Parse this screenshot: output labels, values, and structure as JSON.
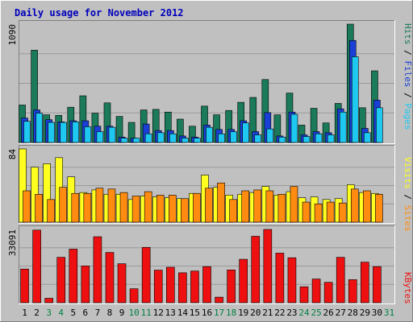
{
  "colors": {
    "background": "#c0c0c0",
    "plot_bg": "#c0c0c0",
    "gridline": "#9a9a9a",
    "title": "#0000bb",
    "hits": "#1a7a5a",
    "files": "#1a3fd6",
    "pages": "#1ec8f0",
    "visits": "#ffff20",
    "sites": "#ff8c10",
    "kbytes": "#ee1010",
    "weekday_label": "#000000",
    "weekend_label": "#008040",
    "slash": "#000000"
  },
  "chart_data": {
    "type": "bar",
    "title": "Daily usage for November 2012",
    "categories": [
      "1",
      "2",
      "3",
      "4",
      "5",
      "6",
      "7",
      "8",
      "9",
      "10",
      "11",
      "12",
      "13",
      "14",
      "15",
      "16",
      "17",
      "18",
      "19",
      "20",
      "21",
      "22",
      "23",
      "24",
      "25",
      "26",
      "27",
      "28",
      "29",
      "30",
      "31"
    ],
    "weekend_days": [
      "3",
      "4",
      "10",
      "11",
      "17",
      "18",
      "24",
      "25",
      "31"
    ],
    "panels": [
      {
        "id": "hits_files_pages",
        "max_label": "1090",
        "ymax": 1090,
        "legend": [
          {
            "name": "Pages",
            "color": "#1ec8f0"
          },
          {
            "name": "Files",
            "color": "#1a3fd6"
          },
          {
            "name": "Hits",
            "color": "#1a7a5a"
          }
        ],
        "series": [
          {
            "name": "Hits",
            "values": [
              345,
              850,
              255,
              250,
              325,
              430,
              270,
              365,
              240,
              185,
              300,
              305,
              280,
              215,
              150,
              335,
              255,
              295,
              370,
              415,
              580,
              255,
              455,
              160,
              315,
              180,
              360,
              1090,
              320,
              660,
              0
            ]
          },
          {
            "name": "Files",
            "values": [
              225,
              300,
              210,
              190,
              200,
              200,
              150,
              150,
              50,
              40,
              170,
              110,
              110,
              60,
              50,
              160,
              120,
              120,
              200,
              100,
              275,
              60,
              280,
              70,
              100,
              90,
              310,
              940,
              130,
              390,
              0
            ]
          },
          {
            "name": "Pages",
            "values": [
              195,
              270,
              185,
              185,
              190,
              145,
              100,
              140,
              40,
              40,
              80,
              90,
              80,
              40,
              40,
              140,
              80,
              100,
              180,
              70,
              125,
              50,
              260,
              55,
              80,
              70,
              280,
              790,
              90,
              320,
              0
            ]
          }
        ]
      },
      {
        "id": "visits_sites",
        "max_label": "84",
        "ymax": 84,
        "legend": [
          {
            "name": "Sites",
            "color": "#ff8c10"
          },
          {
            "name": "Visits",
            "color": "#ffff20"
          }
        ],
        "series": [
          {
            "name": "Visits",
            "values": [
              84,
              63,
              67,
              74,
              52,
              34,
              37,
              32,
              32,
              26,
              30,
              29,
              28,
              27,
              33,
              54,
              40,
              31,
              32,
              34,
              41,
              31,
              35,
              28,
              29,
              26,
              27,
              43,
              34,
              33,
              0
            ]
          },
          {
            "name": "Sites",
            "values": [
              36,
              32,
              26,
              40,
              33,
              33,
              39,
              38,
              34,
              30,
              35,
              31,
              31,
              27,
              33,
              39,
              45,
              26,
              36,
              37,
              36,
              32,
              41,
              23,
              21,
              23,
              22,
              38,
              36,
              32,
              0
            ]
          }
        ]
      },
      {
        "id": "kbytes",
        "max_label": "33091",
        "ymax": 33091,
        "legend": [
          {
            "name": "KBytes",
            "color": "#ee1010"
          }
        ],
        "series": [
          {
            "name": "KBytes",
            "values": [
              15200,
              32800,
              2000,
              20500,
              24200,
              16600,
              29800,
              22700,
              17600,
              6300,
              25000,
              14700,
              16000,
              13500,
              14300,
              16300,
              2500,
              14800,
              19600,
              30000,
              33091,
              22400,
              20300,
              7200,
              10700,
              9200,
              20500,
              10400,
              18300,
              16300,
              0
            ]
          }
        ]
      }
    ]
  }
}
